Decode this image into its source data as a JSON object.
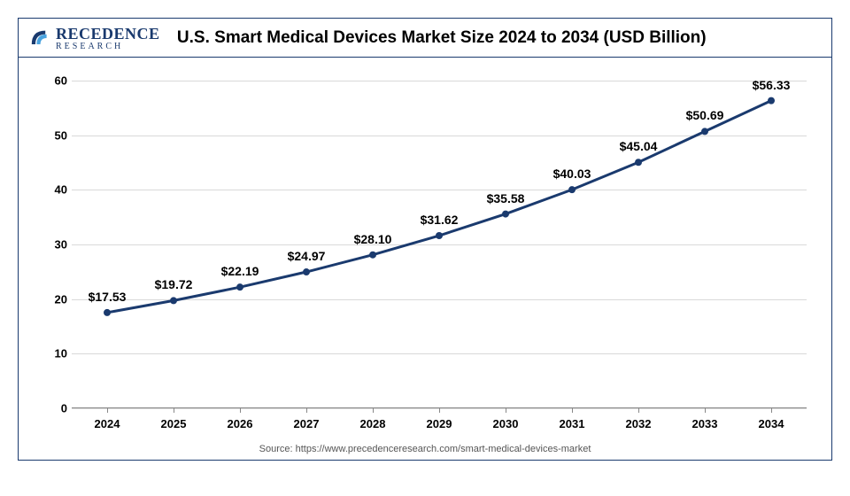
{
  "logo": {
    "main": "RECEDENCE",
    "sub": "RESEARCH"
  },
  "title": "U.S. Smart Medical Devices Market Size 2024 to 2034 (USD Billion)",
  "chart": {
    "type": "line",
    "years": [
      "2024",
      "2025",
      "2026",
      "2027",
      "2028",
      "2029",
      "2030",
      "2031",
      "2032",
      "2033",
      "2034"
    ],
    "values": [
      17.53,
      19.72,
      22.19,
      24.97,
      28.1,
      31.62,
      35.58,
      40.03,
      45.04,
      50.69,
      56.33
    ],
    "value_labels": [
      "$17.53",
      "$19.72",
      "$22.19",
      "$24.97",
      "$28.10",
      "$31.62",
      "$35.58",
      "$40.03",
      "$45.04",
      "$50.69",
      "$56.33"
    ],
    "ylim": [
      0,
      60
    ],
    "ytick_step": 10,
    "yticks": [
      "0",
      "10",
      "20",
      "30",
      "40",
      "50",
      "60"
    ],
    "line_color": "#1a3a6e",
    "marker_color": "#1a3a6e",
    "line_width": 3,
    "marker_radius": 4,
    "grid_color": "#d9d9d9",
    "background_color": "#ffffff",
    "label_fontsize": 14,
    "axis_fontsize": 13
  },
  "source": "Source: https://www.precedenceresearch.com/smart-medical-devices-market"
}
